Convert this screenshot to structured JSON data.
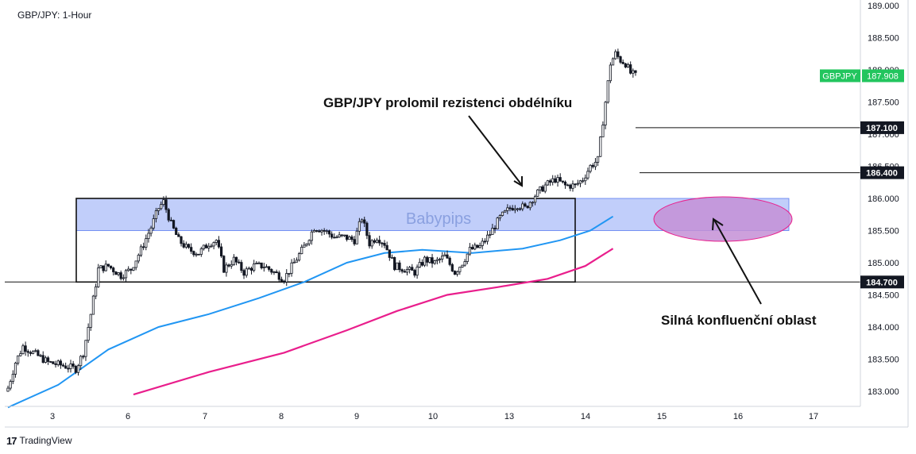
{
  "header": {
    "title": "GBP/JPY: 1-Hour"
  },
  "annotations": {
    "breakout": "GBP/JPY prolomil rezistenci obdélníku",
    "confluence": "Silná konfluenční oblast",
    "watermark": "Babypips"
  },
  "footer": {
    "brand": "TradingView",
    "brand_mark": "17"
  },
  "colors": {
    "candle": "#131722",
    "ma_fast": "#2196f3",
    "ma_slow": "#e91e8c",
    "zone_fill": "#9fb4f7",
    "ellipse_fill": "#c48fd6",
    "ellipse_stroke": "#e91e8c",
    "last_price_bg": "#22c55e",
    "level_bg": "#131722"
  },
  "chart_data": {
    "type": "candlestick",
    "title": "GBP/JPY: 1-Hour",
    "xlabel": "",
    "ylabel": "",
    "ylim": [
      182.85,
      189.05
    ],
    "x_ticks": [
      "3",
      "6",
      "7",
      "8",
      "9",
      "10",
      "13",
      "14",
      "15",
      "16",
      "17"
    ],
    "y_ticks": [
      "189.000",
      "188.500",
      "188.000",
      "187.500",
      "187.000",
      "186.500",
      "186.000",
      "185.500",
      "185.000",
      "184.500",
      "184.000",
      "183.500",
      "183.000"
    ],
    "grid": false,
    "last_price": {
      "symbol": "GBPJPY",
      "value": "187.908"
    },
    "levels": [
      {
        "label": "187.100",
        "value": 187.1
      },
      {
        "label": "186.400",
        "value": 186.4
      },
      {
        "label": "184.700",
        "value": 184.7
      }
    ],
    "resistance_zone": [
      185.5,
      186.0
    ],
    "range_box": {
      "low": 184.7,
      "high": 186.0
    },
    "close_path": [
      [
        0,
        183.05
      ],
      [
        3,
        183.45
      ],
      [
        6,
        183.7
      ],
      [
        10,
        183.6
      ],
      [
        16,
        183.45
      ],
      [
        22,
        183.4
      ],
      [
        27,
        183.35
      ],
      [
        30,
        183.6
      ],
      [
        33,
        184.2
      ],
      [
        36,
        184.9
      ],
      [
        40,
        184.95
      ],
      [
        45,
        184.8
      ],
      [
        49,
        184.9
      ],
      [
        53,
        185.2
      ],
      [
        57,
        185.55
      ],
      [
        60,
        185.85
      ],
      [
        62,
        185.95
      ],
      [
        65,
        185.6
      ],
      [
        68,
        185.35
      ],
      [
        72,
        185.2
      ],
      [
        76,
        185.15
      ],
      [
        80,
        185.3
      ],
      [
        83,
        185.35
      ],
      [
        86,
        184.9
      ],
      [
        90,
        185.05
      ],
      [
        94,
        184.85
      ],
      [
        98,
        184.95
      ],
      [
        102,
        184.95
      ],
      [
        106,
        184.85
      ],
      [
        110,
        184.75
      ],
      [
        114,
        185.0
      ],
      [
        118,
        185.25
      ],
      [
        122,
        185.55
      ],
      [
        126,
        185.5
      ],
      [
        130,
        185.4
      ],
      [
        134,
        185.4
      ],
      [
        138,
        185.35
      ],
      [
        141,
        185.7
      ],
      [
        144,
        185.3
      ],
      [
        147,
        185.4
      ],
      [
        150,
        185.3
      ],
      [
        154,
        184.95
      ],
      [
        158,
        184.9
      ],
      [
        162,
        184.85
      ],
      [
        166,
        185.05
      ],
      [
        170,
        185.0
      ],
      [
        174,
        185.1
      ],
      [
        178,
        184.85
      ],
      [
        181,
        185.0
      ],
      [
        184,
        185.2
      ],
      [
        188,
        185.25
      ],
      [
        192,
        185.45
      ],
      [
        196,
        185.7
      ],
      [
        200,
        185.85
      ],
      [
        203,
        185.9
      ],
      [
        206,
        185.85
      ],
      [
        210,
        186.05
      ],
      [
        214,
        186.2
      ],
      [
        218,
        186.3
      ],
      [
        222,
        186.2
      ],
      [
        226,
        186.2
      ],
      [
        229,
        186.3
      ],
      [
        232,
        186.5
      ],
      [
        235,
        186.6
      ],
      [
        238,
        187.5
      ],
      [
        240,
        188.1
      ],
      [
        242,
        188.25
      ],
      [
        244,
        188.15
      ],
      [
        246,
        188.1
      ],
      [
        248,
        187.95
      ],
      [
        250,
        187.908
      ]
    ],
    "ma_fast": [
      [
        0,
        182.75
      ],
      [
        20,
        183.1
      ],
      [
        40,
        183.65
      ],
      [
        60,
        184.0
      ],
      [
        80,
        184.2
      ],
      [
        100,
        184.45
      ],
      [
        118,
        184.7
      ],
      [
        135,
        185.0
      ],
      [
        150,
        185.15
      ],
      [
        165,
        185.2
      ],
      [
        185,
        185.15
      ],
      [
        205,
        185.22
      ],
      [
        220,
        185.35
      ],
      [
        232,
        185.5
      ],
      [
        241,
        185.72
      ]
    ],
    "ma_slow": [
      [
        50,
        182.95
      ],
      [
        80,
        183.3
      ],
      [
        110,
        183.6
      ],
      [
        135,
        183.95
      ],
      [
        155,
        184.25
      ],
      [
        175,
        184.5
      ],
      [
        195,
        184.62
      ],
      [
        215,
        184.75
      ],
      [
        230,
        184.95
      ],
      [
        241,
        185.22
      ]
    ]
  }
}
